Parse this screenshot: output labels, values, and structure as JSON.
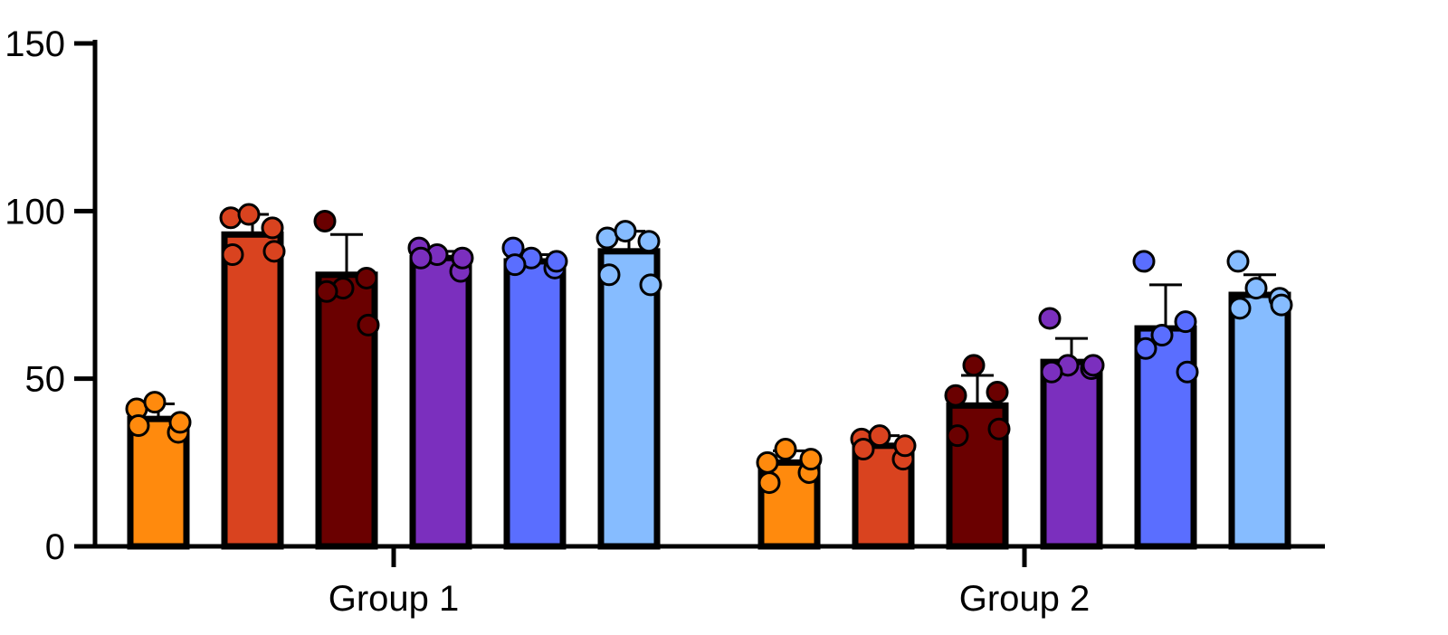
{
  "chart_data": {
    "type": "bar",
    "title": "",
    "xlabel": "",
    "ylabel": "",
    "ylim": [
      0,
      150
    ],
    "yticks": [
      0,
      50,
      100,
      150
    ],
    "grid": false,
    "categories": [
      "Group 1",
      "Group 2"
    ],
    "error_bars": "sd",
    "series": [
      {
        "color": "#FF8A0D",
        "values": [
          38,
          25
        ],
        "errors": [
          4.5,
          3.5
        ],
        "points": [
          [
            41,
            43,
            34,
            36,
            37
          ],
          [
            25,
            29,
            22,
            19,
            26
          ]
        ]
      },
      {
        "color": "#D9431F",
        "values": [
          93,
          30
        ],
        "errors": [
          6,
          3
        ],
        "points": [
          [
            98,
            99,
            95,
            87,
            88
          ],
          [
            32,
            33,
            26,
            29,
            30
          ]
        ]
      },
      {
        "color": "#6A0000",
        "values": [
          81,
          42
        ],
        "errors": [
          12,
          9
        ],
        "points": [
          [
            97,
            77,
            80,
            76,
            66
          ],
          [
            45,
            54,
            46,
            33,
            35
          ]
        ]
      },
      {
        "color": "#7B2FBE",
        "values": [
          86,
          55
        ],
        "errors": [
          2,
          7
        ],
        "points": [
          [
            89,
            87,
            82,
            86,
            86
          ],
          [
            68,
            54,
            53,
            52,
            54
          ]
        ]
      },
      {
        "color": "#5A6EFF",
        "values": [
          85,
          65
        ],
        "errors": [
          2,
          13
        ],
        "points": [
          [
            89,
            86,
            83,
            84,
            85
          ],
          [
            85,
            63,
            67,
            59,
            52
          ]
        ]
      },
      {
        "color": "#86BCFF",
        "values": [
          88,
          75
        ],
        "errors": [
          6,
          6
        ],
        "points": [
          [
            92,
            94,
            91,
            81,
            78
          ],
          [
            85,
            77,
            74,
            71,
            72
          ]
        ]
      }
    ]
  }
}
